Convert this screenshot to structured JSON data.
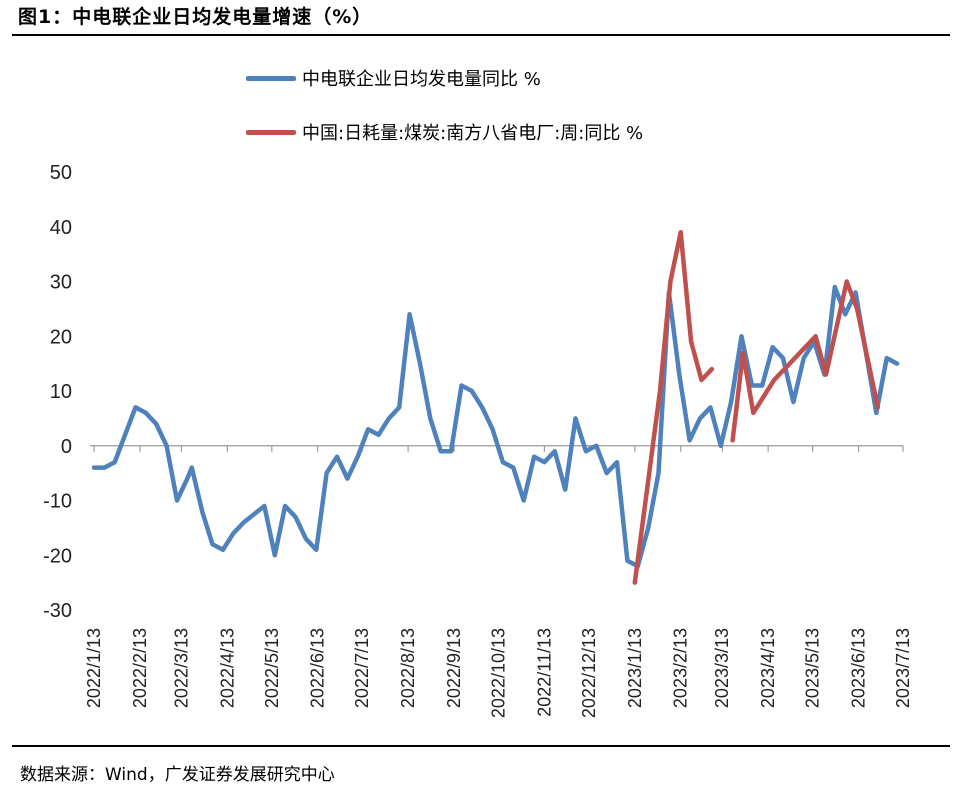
{
  "figure": {
    "title": "图1：中电联企业日均发电量增速（%）",
    "source": "数据来源：Wind，广发证券发展研究中心"
  },
  "chart_data": {
    "type": "line",
    "title": "",
    "xlabel": "",
    "ylabel": "",
    "ylim": [
      -30,
      50
    ],
    "yticks": [
      "-30",
      "-20",
      "-10",
      "0",
      "10",
      "20",
      "30",
      "40",
      "50"
    ],
    "xlim": [
      "2022-01-13",
      "2023-07-13"
    ],
    "xticks": [
      "2022/1/13",
      "2022/2/13",
      "2022/3/13",
      "2022/4/13",
      "2022/5/13",
      "2022/6/13",
      "2022/7/13",
      "2022/8/13",
      "2022/9/13",
      "2022/10/13",
      "2022/11/13",
      "2022/12/13",
      "2023/1/13",
      "2023/2/13",
      "2023/3/13",
      "2023/4/13",
      "2023/5/13",
      "2023/6/13",
      "2023/7/13"
    ],
    "grid": false,
    "legend": "top",
    "series": [
      {
        "name": "中电联企业日均发电量同比 %",
        "color": "#4f81bd",
        "points": [
          [
            "2022-01-13",
            -4
          ],
          [
            "2022-01-20",
            -4
          ],
          [
            "2022-01-27",
            -3
          ],
          [
            "2022-02-03",
            2
          ],
          [
            "2022-02-10",
            7
          ],
          [
            "2022-02-17",
            6
          ],
          [
            "2022-02-24",
            4
          ],
          [
            "2022-03-03",
            0
          ],
          [
            "2022-03-10",
            -10
          ],
          [
            "2022-03-17",
            -6
          ],
          [
            "2022-03-20",
            -4
          ],
          [
            "2022-03-27",
            -12
          ],
          [
            "2022-04-03",
            -18
          ],
          [
            "2022-04-10",
            -19
          ],
          [
            "2022-04-17",
            -16
          ],
          [
            "2022-04-24",
            -14
          ],
          [
            "2022-05-08",
            -11
          ],
          [
            "2022-05-15",
            -20
          ],
          [
            "2022-05-22",
            -11
          ],
          [
            "2022-05-29",
            -13
          ],
          [
            "2022-06-05",
            -17
          ],
          [
            "2022-06-12",
            -19
          ],
          [
            "2022-06-19",
            -5
          ],
          [
            "2022-06-26",
            -2
          ],
          [
            "2022-07-03",
            -6
          ],
          [
            "2022-07-10",
            -2
          ],
          [
            "2022-07-17",
            3
          ],
          [
            "2022-07-24",
            2
          ],
          [
            "2022-07-31",
            5
          ],
          [
            "2022-08-07",
            7
          ],
          [
            "2022-08-14",
            24
          ],
          [
            "2022-08-21",
            15
          ],
          [
            "2022-08-28",
            5
          ],
          [
            "2022-09-04",
            -1
          ],
          [
            "2022-09-11",
            -1
          ],
          [
            "2022-09-18",
            11
          ],
          [
            "2022-09-25",
            10
          ],
          [
            "2022-10-02",
            7
          ],
          [
            "2022-10-09",
            3
          ],
          [
            "2022-10-16",
            -3
          ],
          [
            "2022-10-23",
            -4
          ],
          [
            "2022-10-30",
            -10
          ],
          [
            "2022-11-06",
            -2
          ],
          [
            "2022-11-13",
            -3
          ],
          [
            "2022-11-20",
            -1
          ],
          [
            "2022-11-27",
            -8
          ],
          [
            "2022-12-04",
            5
          ],
          [
            "2022-12-11",
            -1
          ],
          [
            "2022-12-18",
            0
          ],
          [
            "2022-12-25",
            -5
          ],
          [
            "2023-01-01",
            -3
          ],
          [
            "2023-01-08",
            -21
          ],
          [
            "2023-01-15",
            -22
          ],
          [
            "2023-01-22",
            -15
          ],
          [
            "2023-01-29",
            -5
          ],
          [
            "2023-02-05",
            28
          ],
          [
            "2023-02-12",
            13
          ],
          [
            "2023-02-19",
            1
          ],
          [
            "2023-02-26",
            5
          ],
          [
            "2023-03-05",
            7
          ],
          [
            "2023-03-12",
            0
          ],
          [
            "2023-03-19",
            8
          ],
          [
            "2023-03-26",
            20
          ],
          [
            "2023-04-02",
            11
          ],
          [
            "2023-04-09",
            11
          ],
          [
            "2023-04-16",
            18
          ],
          [
            "2023-04-23",
            16
          ],
          [
            "2023-04-30",
            8
          ],
          [
            "2023-05-07",
            16
          ],
          [
            "2023-05-14",
            19
          ],
          [
            "2023-05-21",
            13
          ],
          [
            "2023-05-28",
            29
          ],
          [
            "2023-06-04",
            24
          ],
          [
            "2023-06-11",
            28
          ],
          [
            "2023-06-18",
            17
          ],
          [
            "2023-06-25",
            6
          ],
          [
            "2023-07-02",
            16
          ],
          [
            "2023-07-09",
            15
          ]
        ]
      },
      {
        "name": "中国:日耗量:煤炭:南方八省电厂:周:同比 %",
        "color": "#c0504d",
        "segments": [
          [
            [
              "2023-01-13",
              -25
            ],
            [
              "2023-01-30",
              10
            ],
            [
              "2023-02-06",
              30
            ],
            [
              "2023-02-13",
              39
            ],
            [
              "2023-02-20",
              19
            ],
            [
              "2023-02-27",
              12
            ],
            [
              "2023-03-06",
              14
            ]
          ],
          [
            [
              "2023-03-20",
              1
            ],
            [
              "2023-03-27",
              17
            ],
            [
              "2023-04-03",
              6
            ],
            [
              "2023-04-17",
              12
            ],
            [
              "2023-05-15",
              20
            ],
            [
              "2023-05-22",
              13
            ],
            [
              "2023-06-05",
              30
            ],
            [
              "2023-06-12",
              25
            ],
            [
              "2023-06-26",
              7
            ]
          ]
        ]
      }
    ]
  }
}
